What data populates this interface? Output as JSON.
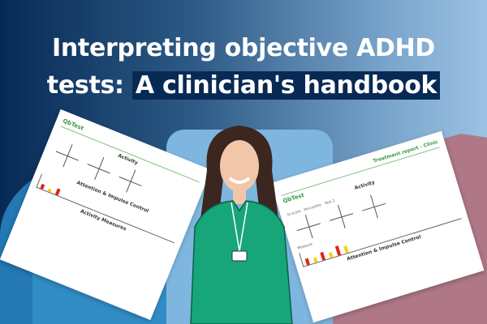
{
  "title": {
    "line1": "Interpreting objective ADHD tests:",
    "line1_main": "Interpreting objective ADHD",
    "line2_prefix": "tests:",
    "line2_highlight": "A clinician's handbook"
  },
  "colors": {
    "navy": "#072a55",
    "light_blue": "#9cc2e3",
    "mauve": "#b07887",
    "shirt_green": "#17a57a",
    "logo_green": "#3a9b45"
  },
  "doc_left": {
    "logo": "QbTest",
    "sections": [
      "Activity",
      "Attention & Impulse Control",
      "Activity Measures"
    ]
  },
  "doc_right": {
    "logo": "QbTest",
    "report": "Treatment report - Clinic",
    "sections": [
      "Activity",
      "Attention & Impulse Control"
    ],
    "headers": [
      "Q-score",
      "Percentile",
      "Measure"
    ],
    "legend": "Test 2"
  }
}
